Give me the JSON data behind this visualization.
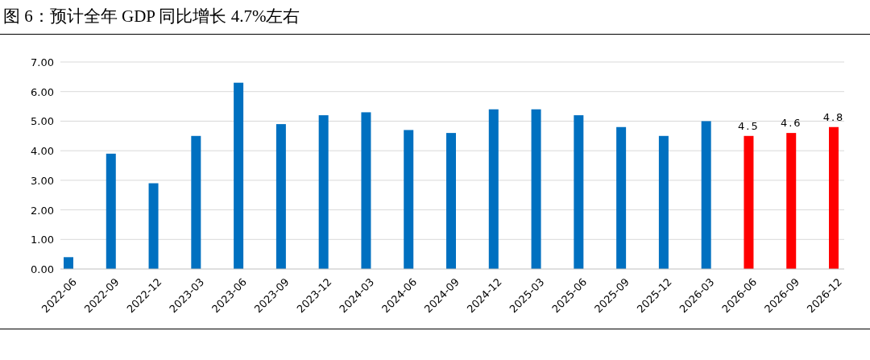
{
  "chart_data": {
    "type": "bar",
    "title": "图 6：预计全年 GDP 同比增长 4.7%左右",
    "categories": [
      "2022-06",
      "2022-09",
      "2022-12",
      "2023-03",
      "2023-06",
      "2023-09",
      "2023-12",
      "2024-03",
      "2024-06",
      "2024-09",
      "2024-12",
      "2025-03",
      "2025-06",
      "2025-09",
      "2025-12",
      "2026-03",
      "2026-06",
      "2026-09",
      "2026-12"
    ],
    "values": [
      0.4,
      3.9,
      2.9,
      4.5,
      6.3,
      4.9,
      5.2,
      5.3,
      4.7,
      4.6,
      5.4,
      5.4,
      5.2,
      4.8,
      4.5,
      5.0,
      4.5,
      4.6,
      4.8
    ],
    "colors": [
      "#0070c0",
      "#0070c0",
      "#0070c0",
      "#0070c0",
      "#0070c0",
      "#0070c0",
      "#0070c0",
      "#0070c0",
      "#0070c0",
      "#0070c0",
      "#0070c0",
      "#0070c0",
      "#0070c0",
      "#0070c0",
      "#0070c0",
      "#0070c0",
      "#ff0000",
      "#ff0000",
      "#ff0000"
    ],
    "value_labels": [
      null,
      null,
      null,
      null,
      null,
      null,
      null,
      null,
      null,
      null,
      null,
      null,
      null,
      null,
      null,
      null,
      "4.5",
      "4.6",
      "4.8"
    ],
    "ylim": [
      0,
      7
    ],
    "yticks": [
      {
        "value": 0,
        "label": "0.00"
      },
      {
        "value": 1,
        "label": "1.00"
      },
      {
        "value": 2,
        "label": "2.00"
      },
      {
        "value": 3,
        "label": "3.00"
      },
      {
        "value": 4,
        "label": "4.00"
      },
      {
        "value": 5,
        "label": "5.00"
      },
      {
        "value": 6,
        "label": "6.00"
      },
      {
        "value": 7,
        "label": "7.00"
      }
    ],
    "grid": "y"
  }
}
